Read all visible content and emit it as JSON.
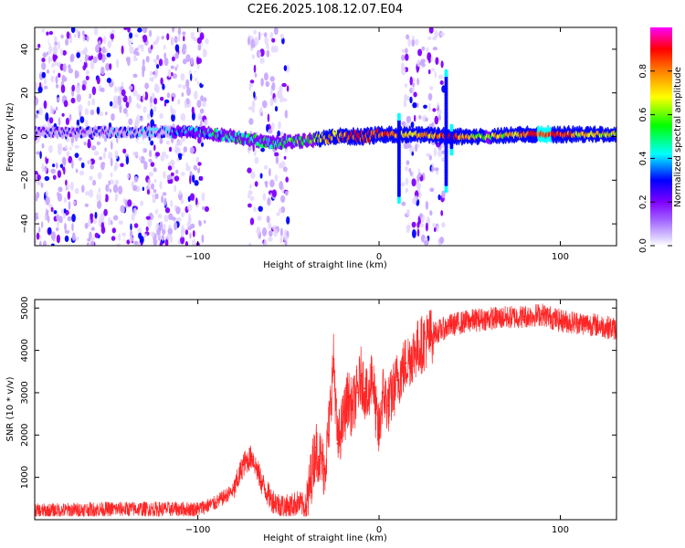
{
  "title": "C2E6.2025.108.12.07.E04",
  "colors": {
    "snr_line": "#ff0000",
    "frame": "#000000",
    "background": "#ffffff"
  },
  "chart_data": [
    {
      "type": "heatmap",
      "xlabel": "Height of straight line (km)",
      "ylabel": "Frequency (Hz)",
      "xlim": [
        -190,
        131
      ],
      "ylim": [
        -50,
        50
      ],
      "x_ticks": [
        -100,
        0,
        100
      ],
      "y_ticks": [
        -40,
        -20,
        0,
        20,
        40
      ],
      "grid": false,
      "colorbar": {
        "label": "Normalized spectral amplitude",
        "range": [
          0,
          1
        ],
        "ticks": [
          0.0,
          0.2,
          0.4,
          0.6,
          0.8
        ],
        "colormap": [
          "#ffffff",
          "#c9a9ff",
          "#7f00ff",
          "#0000ff",
          "#00ffff",
          "#00ff00",
          "#ffff00",
          "#ff8000",
          "#ff0000",
          "#ff00ff"
        ]
      },
      "noise_bands_km": [
        [
          -190,
          -95
        ],
        [
          -72,
          -50
        ],
        [
          13,
          36
        ]
      ],
      "vertical_features_km": [
        [
          11,
          -30,
          10
        ],
        [
          37,
          -25,
          30
        ],
        [
          40,
          -8,
          5
        ]
      ],
      "ridge": [
        {
          "x": -190,
          "freq": 2,
          "amp": 0.25
        },
        {
          "x": -150,
          "freq": 2,
          "amp": 0.3
        },
        {
          "x": -100,
          "freq": 2,
          "amp": 0.4
        },
        {
          "x": -80,
          "freq": 0,
          "amp": 0.5
        },
        {
          "x": -60,
          "freq": -3,
          "amp": 0.5
        },
        {
          "x": -40,
          "freq": -2,
          "amp": 0.55
        },
        {
          "x": -25,
          "freq": 0,
          "amp": 0.75
        },
        {
          "x": -10,
          "freq": 0,
          "amp": 0.85
        },
        {
          "x": 5,
          "freq": 1,
          "amp": 0.8
        },
        {
          "x": 20,
          "freq": 1,
          "amp": 0.7
        },
        {
          "x": 40,
          "freq": 0,
          "amp": 0.85
        },
        {
          "x": 60,
          "freq": 0,
          "amp": 0.6
        },
        {
          "x": 80,
          "freq": 1,
          "amp": 0.8
        },
        {
          "x": 92,
          "freq": 1,
          "amp": 0.9
        },
        {
          "x": 110,
          "freq": 1,
          "amp": 0.7
        },
        {
          "x": 131,
          "freq": 1,
          "amp": 0.65
        }
      ]
    },
    {
      "type": "line",
      "xlabel": "Height of straight line (km)",
      "ylabel": "SNR (10 * v/v)",
      "xlim": [
        -190,
        131
      ],
      "ylim": [
        0,
        5200
      ],
      "x_ticks": [
        -100,
        0,
        100
      ],
      "y_ticks": [
        1000,
        2000,
        3000,
        4000,
        5000
      ],
      "grid": false,
      "series": [
        {
          "x": [
            -190,
            -150,
            -100,
            -90,
            -80,
            -75,
            -70,
            -65,
            -60,
            -55,
            -50,
            -45,
            -40,
            -35,
            -33,
            -30,
            -28,
            -25,
            -23,
            -20,
            -17,
            -15,
            -12,
            -10,
            -8,
            -6,
            -4,
            -2,
            0,
            2,
            5,
            10,
            15,
            20,
            30,
            40,
            50,
            60,
            80,
            90,
            100,
            110,
            120,
            131
          ],
          "y": [
            200,
            250,
            250,
            400,
            700,
            1300,
            1500,
            900,
            500,
            350,
            300,
            400,
            300,
            1700,
            1500,
            1200,
            2000,
            3800,
            1800,
            2300,
            2900,
            2600,
            3000,
            3400,
            3100,
            2700,
            3600,
            2600,
            2000,
            3000,
            2700,
            3300,
            3700,
            4000,
            4400,
            4600,
            4700,
            4750,
            4800,
            4850,
            4700,
            4650,
            4600,
            4500
          ]
        }
      ]
    }
  ]
}
